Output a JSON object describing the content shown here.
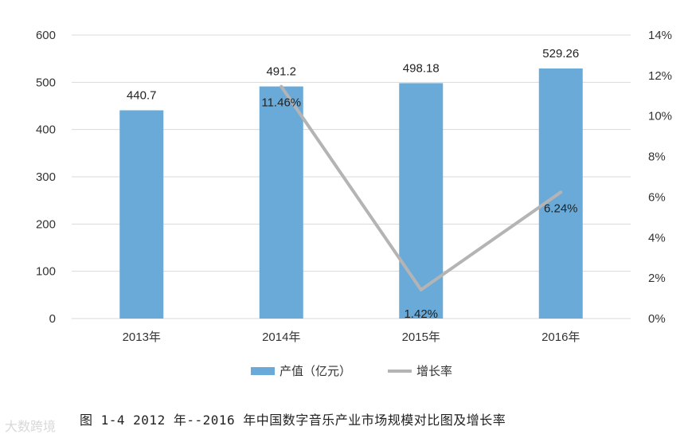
{
  "chart_data": {
    "type": "bar",
    "categories": [
      "2013年",
      "2014年",
      "2015年",
      "2016年"
    ],
    "series": [
      {
        "name": "产值（亿元）",
        "type": "bar",
        "axis": "left",
        "values": [
          440.7,
          491.2,
          498.18,
          529.26
        ],
        "labels": [
          "440.7",
          "491.2",
          "498.18",
          "529.26"
        ],
        "color": "#6aaad8"
      },
      {
        "name": "增长率",
        "type": "line",
        "axis": "right",
        "values": [
          null,
          11.46,
          1.42,
          6.24
        ],
        "labels": [
          "",
          "11.46%",
          "1.42%",
          "6.24%"
        ],
        "color": "#b4b4b4"
      }
    ],
    "y_left": {
      "min": 0,
      "max": 600,
      "ticks": [
        "0",
        "100",
        "200",
        "300",
        "400",
        "500",
        "600"
      ]
    },
    "y_right": {
      "min": 0,
      "max": 14,
      "ticks": [
        "0%",
        "2%",
        "4%",
        "6%",
        "8%",
        "10%",
        "12%",
        "14%"
      ]
    },
    "grid": true,
    "legend": "bottom"
  },
  "caption": "图 1-4  2012 年--2016 年中国数字音乐产业市场规模对比图及增长率",
  "watermark": "大数跨境"
}
